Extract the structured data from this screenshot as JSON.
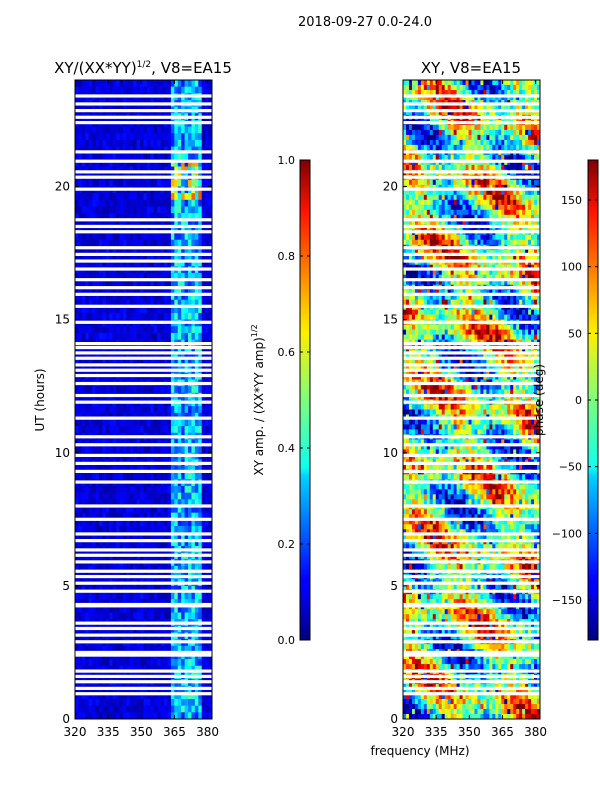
{
  "figure": {
    "suptitle": "2018-09-27 0.0-24.0",
    "common_xlabel": "frequency (MHz)"
  },
  "chart_data": [
    {
      "type": "heatmap",
      "id": "amp",
      "title": "XY/(XX*YY)",
      "title_sup": "1/2",
      "title_suffix": ", V8=EA15",
      "xlabel": "",
      "ylabel": "UT (hours)",
      "xlim": [
        320,
        382
      ],
      "ylim": [
        0,
        24
      ],
      "xticks": [
        320,
        335,
        350,
        365,
        380
      ],
      "yticks": [
        0,
        5,
        10,
        15,
        20
      ],
      "colorbar": {
        "label": "XY amp. / (XX*YY amp)",
        "label_sup": "1/2",
        "range": [
          0.0,
          1.0
        ],
        "ticks": [
          0.0,
          0.2,
          0.4,
          0.6,
          0.8,
          1.0
        ],
        "tick_labels": [
          "0.0",
          "0.2",
          "0.4",
          "0.6",
          "0.8",
          "1.0"
        ],
        "colormap": "jet"
      },
      "description_values": {
        "background_level": 0.05,
        "bright_band_mhz": [
          363,
          378
        ],
        "bright_band_level": 0.3
      }
    },
    {
      "type": "heatmap",
      "id": "phase",
      "title": "XY, V8=EA15",
      "xlabel": "frequency (MHz)",
      "ylabel": "",
      "xlim": [
        320,
        382
      ],
      "ylim": [
        0,
        24
      ],
      "xticks": [
        320,
        335,
        350,
        365,
        380
      ],
      "yticks": [
        0,
        5,
        10,
        15,
        20
      ],
      "colorbar": {
        "label": "phase (deg)",
        "range": [
          -180,
          180
        ],
        "ticks": [
          -150,
          -100,
          -50,
          0,
          50,
          100,
          150
        ],
        "tick_labels": [
          "−150",
          "−100",
          "−50",
          "0",
          "50",
          "100",
          "150"
        ],
        "colormap": "jet"
      }
    }
  ],
  "flagged_hours": [
    0.95,
    1.15,
    1.4,
    1.6,
    1.8,
    2.4,
    2.5,
    2.9,
    3.15,
    3.4,
    3.6,
    4.25,
    4.3,
    4.8,
    5.1,
    5.35,
    5.55,
    5.9,
    6.15,
    6.35,
    6.7,
    6.95,
    7.5,
    8.0,
    8.9,
    9.3,
    9.6,
    9.9,
    10.3,
    10.6,
    11.3,
    11.9,
    12.15,
    12.6,
    12.9,
    13.1,
    13.3,
    13.55,
    13.75,
    13.95,
    14.1,
    14.9,
    15.5,
    15.95,
    16.2,
    16.5,
    16.9,
    17.2,
    17.45,
    17.7,
    18.3,
    18.5,
    18.75,
    19.9,
    20.35,
    20.55,
    20.95,
    21.3,
    22.4,
    22.6,
    22.85,
    23.1,
    23.4
  ]
}
